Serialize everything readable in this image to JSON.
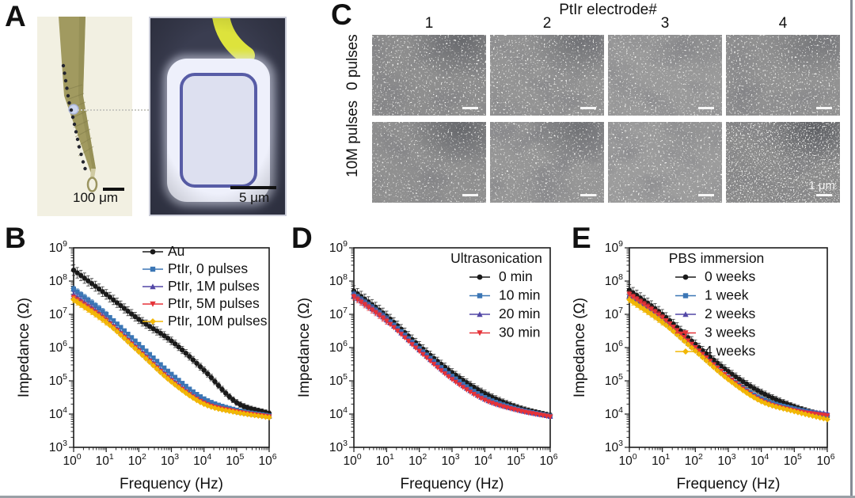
{
  "figure": {
    "panels": {
      "a": "A",
      "b": "B",
      "c": "C",
      "d": "D",
      "e": "E"
    }
  },
  "panel_a": {
    "left_image": {
      "description": "optical image of electrode shank",
      "scale_bar_label": "100 μm"
    },
    "right_image": {
      "description": "optical close-up of single electrode site",
      "scale_bar_label": "5 μm"
    }
  },
  "panel_c": {
    "title": "PtIr electrode#",
    "column_labels": [
      "1",
      "2",
      "3",
      "4"
    ],
    "row_labels": [
      "0 pulses",
      "10M pulses"
    ],
    "scale_bar_label": "1 μm"
  },
  "chart_data": [
    {
      "id": "B",
      "type": "line",
      "x_scale": "log",
      "y_scale": "log",
      "xlabel": "Frequency (Hz)",
      "ylabel": "Impedance (Ω)",
      "xlim_exp": [
        0,
        6
      ],
      "ylim_exp": [
        3,
        9
      ],
      "x_tick_exponents": [
        0,
        1,
        2,
        3,
        4,
        5,
        6
      ],
      "y_tick_exponents": [
        3,
        4,
        5,
        6,
        7,
        8,
        9
      ],
      "legend_title": "",
      "legend_position": "top-right",
      "grid": false,
      "frequencies_hz": [
        1,
        10,
        100,
        1000,
        10000,
        100000,
        1000000
      ],
      "series": [
        {
          "name": "Au",
          "marker": "circle",
          "color": "#1a1a1a",
          "log10_impedance": [
            8.33,
            7.6,
            6.85,
            6.2,
            5.32,
            4.35,
            4.02
          ],
          "error_bars": "all"
        },
        {
          "name": "PtIr, 0 pulses",
          "marker": "square",
          "color": "#3b76b5",
          "log10_impedance": [
            7.76,
            7.0,
            6.1,
            5.2,
            4.46,
            4.12,
            3.95
          ],
          "error_bars": "low"
        },
        {
          "name": "PtIr, 1M pulses",
          "marker": "triangle-up",
          "color": "#5247a6",
          "log10_impedance": [
            7.6,
            6.86,
            5.96,
            5.06,
            4.36,
            4.08,
            3.93
          ],
          "error_bars": "low"
        },
        {
          "name": "PtIr, 5M pulses",
          "marker": "triangle-down",
          "color": "#e53238",
          "log10_impedance": [
            7.5,
            6.8,
            5.9,
            5.0,
            4.33,
            4.07,
            3.92
          ],
          "error_bars": "low"
        },
        {
          "name": "PtIr, 10M pulses",
          "marker": "diamond",
          "color": "#f2b705",
          "log10_impedance": [
            7.44,
            6.76,
            5.87,
            4.97,
            4.3,
            4.05,
            3.9
          ],
          "error_bars": "low"
        }
      ]
    },
    {
      "id": "D",
      "type": "line",
      "x_scale": "log",
      "y_scale": "log",
      "xlabel": "Frequency (Hz)",
      "ylabel": "Impedance (Ω)",
      "xlim_exp": [
        0,
        6
      ],
      "ylim_exp": [
        3,
        9
      ],
      "x_tick_exponents": [
        0,
        1,
        2,
        3,
        4,
        5,
        6
      ],
      "y_tick_exponents": [
        3,
        4,
        5,
        6,
        7,
        8,
        9
      ],
      "legend_title": "Ultrasonication",
      "legend_position": "top-right",
      "grid": false,
      "frequencies_hz": [
        1,
        10,
        100,
        1000,
        10000,
        100000,
        1000000
      ],
      "series": [
        {
          "name": "0 min",
          "marker": "circle",
          "color": "#1a1a1a",
          "log10_impedance": [
            7.7,
            6.95,
            6.05,
            5.25,
            4.62,
            4.2,
            3.96
          ],
          "error_bars": "all"
        },
        {
          "name": "10 min",
          "marker": "square",
          "color": "#3b76b5",
          "log10_impedance": [
            7.6,
            6.87,
            5.97,
            5.14,
            4.5,
            4.15,
            3.94
          ],
          "error_bars": "low"
        },
        {
          "name": "20 min",
          "marker": "triangle-up",
          "color": "#5247a6",
          "log10_impedance": [
            7.56,
            6.83,
            5.93,
            5.09,
            4.45,
            4.13,
            3.93
          ],
          "error_bars": "low"
        },
        {
          "name": "30 min",
          "marker": "triangle-down",
          "color": "#e53238",
          "log10_impedance": [
            7.52,
            6.79,
            5.89,
            5.04,
            4.42,
            4.11,
            3.92
          ],
          "error_bars": "low"
        }
      ]
    },
    {
      "id": "E",
      "type": "line",
      "x_scale": "log",
      "y_scale": "log",
      "xlabel": "Frequency (Hz)",
      "ylabel": "Impedance (Ω)",
      "xlim_exp": [
        0,
        6
      ],
      "ylim_exp": [
        3,
        9
      ],
      "x_tick_exponents": [
        0,
        1,
        2,
        3,
        4,
        5,
        6
      ],
      "y_tick_exponents": [
        3,
        4,
        5,
        6,
        7,
        8,
        9
      ],
      "legend_title": "PBS immersion",
      "legend_position": "top-right",
      "grid": false,
      "frequencies_hz": [
        1,
        10,
        100,
        1000,
        10000,
        100000,
        1000000
      ],
      "series": [
        {
          "name": "0 weeks",
          "marker": "circle",
          "color": "#1a1a1a",
          "log10_impedance": [
            7.73,
            7.0,
            6.1,
            5.28,
            4.65,
            4.22,
            3.93
          ],
          "error_bars": "all"
        },
        {
          "name": "1 week",
          "marker": "square",
          "color": "#3b76b5",
          "log10_impedance": [
            7.5,
            6.8,
            5.93,
            5.1,
            4.46,
            4.16,
            3.97
          ],
          "error_bars": "low"
        },
        {
          "name": "2 weeks",
          "marker": "triangle-up",
          "color": "#5247a6",
          "log10_impedance": [
            7.56,
            6.86,
            5.97,
            5.12,
            4.43,
            4.13,
            4.02
          ],
          "error_bars": "low"
        },
        {
          "name": "3 weeks",
          "marker": "triangle-down",
          "color": "#e53238",
          "log10_impedance": [
            7.6,
            6.9,
            6.0,
            5.1,
            4.4,
            4.1,
            3.95
          ],
          "error_bars": "low"
        },
        {
          "name": "4 weeks",
          "marker": "diamond",
          "color": "#f2b705",
          "log10_impedance": [
            7.44,
            6.76,
            5.9,
            5.04,
            4.38,
            4.08,
            3.84
          ],
          "error_bars": "low"
        }
      ]
    }
  ],
  "colors": {
    "background": "#ffffff",
    "axis": "#1b1b1b",
    "sem_base_gray": "#919191",
    "probe_tan": "#a19a60",
    "photo_cream_bg": "#f2f0e2",
    "photo_dark_bg": "#3a3d50",
    "electrode_pad_light": "#eef0fb",
    "pad_ring_indigo": "#575ca6",
    "trace_yellow": "#dde33c"
  }
}
